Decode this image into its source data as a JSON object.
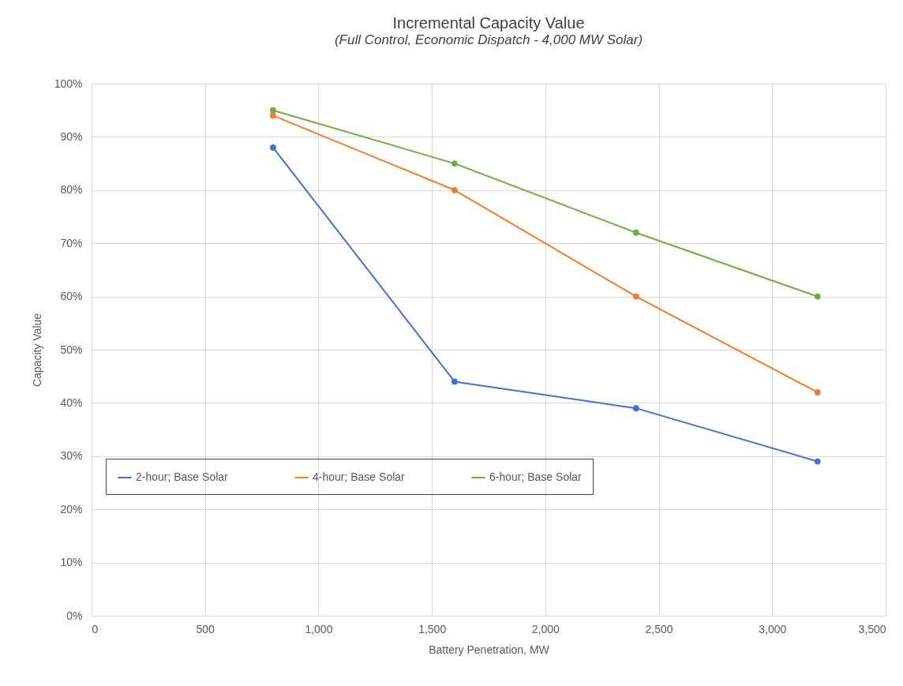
{
  "chart_data": {
    "type": "line",
    "title": "Incremental Capacity Value",
    "subtitle": "(Full Control, Economic Dispatch - 4,000 MW Solar)",
    "xlabel": "Battery Penetration, MW",
    "ylabel": "Capacity Value",
    "x": [
      800,
      1600,
      2400,
      3200
    ],
    "series": [
      {
        "name": "2-hour; Base Solar",
        "color": "#4472c4",
        "values": [
          88,
          44,
          39,
          29
        ]
      },
      {
        "name": "4-hour; Base Solar",
        "color": "#ed7d31",
        "values": [
          94,
          80,
          60,
          42
        ]
      },
      {
        "name": "6-hour; Base Solar",
        "color": "#70ad47",
        "values": [
          95,
          85,
          72,
          60
        ]
      }
    ],
    "xlim": [
      0,
      3500
    ],
    "xticks": [
      0,
      500,
      {
        "value": 1000,
        "label": "1,000"
      },
      {
        "value": 1500,
        "label": "1,500"
      },
      {
        "value": 2000,
        "label": "2,000"
      },
      {
        "value": 2500,
        "label": "2,500"
      },
      {
        "value": 3000,
        "label": "3,000"
      },
      {
        "value": 3500,
        "label": "3,500"
      }
    ],
    "ylim": [
      0,
      100
    ],
    "yticks": [
      {
        "value": 0,
        "label": "0%"
      },
      {
        "value": 10,
        "label": "10%"
      },
      {
        "value": 20,
        "label": "20%"
      },
      {
        "value": 30,
        "label": "30%"
      },
      {
        "value": 40,
        "label": "40%"
      },
      {
        "value": 50,
        "label": "50%"
      },
      {
        "value": 60,
        "label": "60%"
      },
      {
        "value": 70,
        "label": "70%"
      },
      {
        "value": 80,
        "label": "80%"
      },
      {
        "value": 90,
        "label": "90%"
      },
      {
        "value": 100,
        "label": "100%"
      }
    ],
    "grid": true,
    "legend": "bottom left",
    "marker": "circle",
    "line_style": "solid"
  }
}
